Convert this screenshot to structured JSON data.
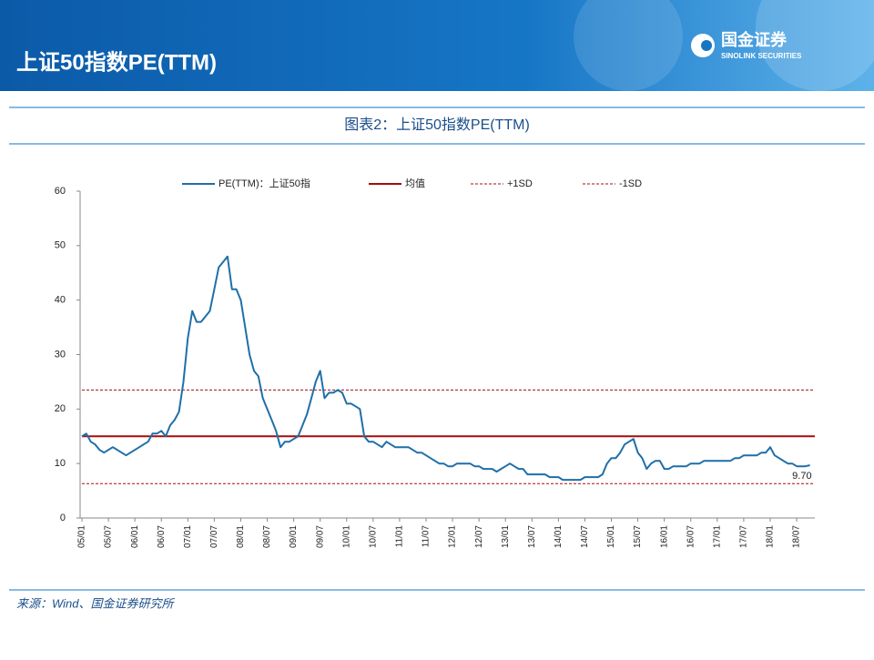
{
  "header": {
    "title": "上证50指数PE(TTM)",
    "logo_cn": "国金证券",
    "logo_en": "SINOLINK SECURITIES"
  },
  "source": "来源：Wind、国金证券研究所",
  "chart_data": {
    "type": "line",
    "title": "图表2：上证50指数PE(TTM)",
    "categories": [
      "05/01",
      null,
      null,
      null,
      null,
      null,
      "05/07",
      null,
      null,
      null,
      null,
      null,
      "06/01",
      null,
      null,
      null,
      null,
      null,
      "06/07",
      null,
      null,
      null,
      null,
      null,
      "07/01",
      null,
      null,
      null,
      null,
      null,
      "07/07",
      null,
      null,
      null,
      null,
      null,
      "08/01",
      null,
      null,
      null,
      null,
      null,
      "08/07",
      null,
      null,
      null,
      null,
      null,
      "09/01",
      null,
      null,
      null,
      null,
      null,
      "09/07",
      null,
      null,
      null,
      null,
      null,
      "10/01",
      null,
      null,
      null,
      null,
      null,
      "10/07",
      null,
      null,
      null,
      null,
      null,
      "11/01",
      null,
      null,
      null,
      null,
      null,
      "11/07",
      null,
      null,
      null,
      null,
      null,
      "12/01",
      null,
      null,
      null,
      null,
      null,
      "12/07",
      null,
      null,
      null,
      null,
      null,
      "13/01",
      null,
      null,
      null,
      null,
      null,
      "13/07",
      null,
      null,
      null,
      null,
      null,
      "14/01",
      null,
      null,
      null,
      null,
      null,
      "14/07",
      null,
      null,
      null,
      null,
      null,
      "15/01",
      null,
      null,
      null,
      null,
      null,
      "15/07",
      null,
      null,
      null,
      null,
      null,
      "16/01",
      null,
      null,
      null,
      null,
      null,
      "16/07",
      null,
      null,
      null,
      null,
      null,
      "17/01",
      null,
      null,
      null,
      null,
      null,
      "17/07",
      null,
      null,
      null,
      null,
      null,
      "18/01",
      null,
      null,
      null,
      null,
      null,
      "18/07",
      null,
      null,
      null
    ],
    "series": [
      {
        "name": "PE(TTM)：上证50指",
        "color": "#1f6fa8",
        "values": [
          15,
          15.5,
          14,
          13.5,
          12.5,
          12,
          12.5,
          13,
          12.5,
          12,
          11.5,
          12,
          12.5,
          13,
          13.5,
          14,
          15.5,
          15.5,
          16,
          15,
          17,
          18,
          19.5,
          25,
          33,
          38,
          36,
          36,
          37,
          38,
          42,
          46,
          47,
          48,
          42,
          42,
          40,
          35,
          30,
          27,
          26,
          22,
          20,
          18,
          16,
          13,
          14,
          14,
          14.5,
          15,
          17,
          19,
          22,
          25,
          27,
          22,
          23,
          23,
          23.5,
          23,
          21,
          21,
          20.5,
          20,
          15,
          14,
          14,
          13.5,
          13,
          14,
          13.5,
          13,
          13,
          13,
          13,
          12.5,
          12,
          12,
          11.5,
          11,
          10.5,
          10,
          10,
          9.5,
          9.5,
          10,
          10,
          10,
          10,
          9.5,
          9.5,
          9,
          9,
          9,
          8.5,
          9,
          9.5,
          10,
          9.5,
          9,
          9,
          8,
          8,
          8,
          8,
          8,
          7.5,
          7.5,
          7.5,
          7,
          7,
          7,
          7,
          7,
          7.5,
          7.5,
          7.5,
          7.5,
          8,
          10,
          11,
          11,
          12,
          13.5,
          14,
          14.5,
          12,
          11,
          9,
          10,
          10.5,
          10.5,
          9,
          9,
          9.5,
          9.5,
          9.5,
          9.5,
          10,
          10,
          10,
          10.5,
          10.5,
          10.5,
          10.5,
          10.5,
          10.5,
          10.5,
          11,
          11,
          11.5,
          11.5,
          11.5,
          11.5,
          12,
          12,
          13,
          11.5,
          11,
          10.5,
          10,
          10,
          9.5,
          9.5,
          9.5,
          9.7
        ]
      }
    ],
    "reference_lines": [
      {
        "name": "均值",
        "color": "#a50d0d",
        "value": 15,
        "style": "solid"
      },
      {
        "name": "+1SD",
        "color": "#a50d0d",
        "value": 23.5,
        "style": "dashed"
      },
      {
        "name": "-1SD",
        "color": "#a50d0d",
        "value": 6.3,
        "style": "dashed"
      }
    ],
    "annotations": [
      "9.70"
    ],
    "ylim": [
      0,
      60
    ],
    "yticks": [
      0,
      10,
      20,
      30,
      40,
      50,
      60
    ],
    "grid": false
  }
}
